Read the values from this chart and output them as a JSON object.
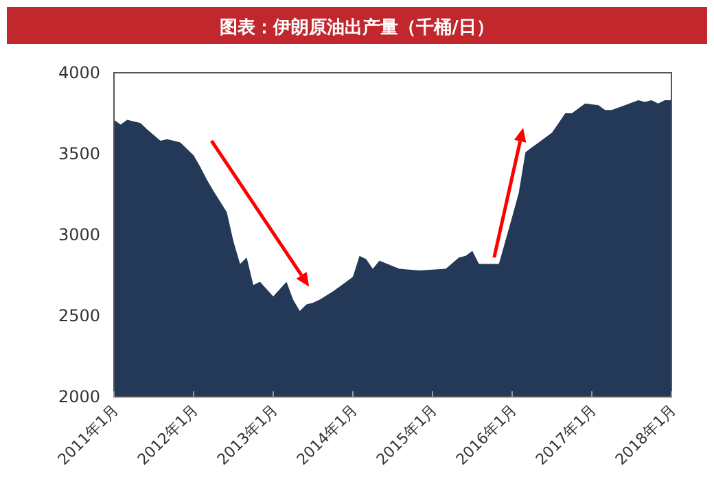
{
  "chart_data": {
    "type": "area",
    "title": "图表：伊朗原油出产量（千桶/日）",
    "x": [
      "2011-01",
      "2011-02",
      "2011-03",
      "2011-05",
      "2011-06",
      "2011-08",
      "2011-09",
      "2011-11",
      "2012-01",
      "2012-02",
      "2012-03",
      "2012-04",
      "2012-06",
      "2012-07",
      "2012-08",
      "2012-09",
      "2012-10",
      "2012-11",
      "2013-01",
      "2013-03",
      "2013-04",
      "2013-05",
      "2013-06",
      "2013-07",
      "2013-08",
      "2013-10",
      "2013-12",
      "2014-01",
      "2014-02",
      "2014-03",
      "2014-04",
      "2014-05",
      "2014-08",
      "2014-11",
      "2015-03",
      "2015-05",
      "2015-06",
      "2015-07",
      "2015-08",
      "2015-11",
      "2016-01",
      "2016-02",
      "2016-03",
      "2016-04",
      "2016-05",
      "2016-07",
      "2016-08",
      "2016-09",
      "2016-10",
      "2016-12",
      "2017-02",
      "2017-03",
      "2017-04",
      "2017-06",
      "2017-08",
      "2017-09",
      "2017-10",
      "2017-11",
      "2017-12",
      "2018-01"
    ],
    "values": [
      3710,
      3680,
      3710,
      3690,
      3650,
      3580,
      3590,
      3570,
      3490,
      3420,
      3340,
      3270,
      3140,
      2960,
      2820,
      2860,
      2690,
      2710,
      2620,
      2710,
      2600,
      2530,
      2570,
      2580,
      2600,
      2650,
      2710,
      2740,
      2870,
      2850,
      2790,
      2840,
      2790,
      2780,
      2790,
      2860,
      2870,
      2900,
      2820,
      2820,
      3110,
      3260,
      3510,
      3540,
      3570,
      3630,
      3690,
      3750,
      3750,
      3810,
      3800,
      3770,
      3770,
      3800,
      3830,
      3820,
      3830,
      3810,
      3830,
      3830
    ],
    "color": "#243858",
    "xlim": [
      "2011-01",
      "2018-01"
    ],
    "xticks": [
      {
        "value": "2011-01",
        "label": "2011年1月"
      },
      {
        "value": "2012-01",
        "label": "2012年1月"
      },
      {
        "value": "2013-01",
        "label": "2013年1月"
      },
      {
        "value": "2014-01",
        "label": "2014年1月"
      },
      {
        "value": "2015-01",
        "label": "2015年1月"
      },
      {
        "value": "2016-01",
        "label": "2016年1月"
      },
      {
        "value": "2017-01",
        "label": "2017年1月"
      },
      {
        "value": "2018-01",
        "label": "2018年1月"
      }
    ],
    "ylim": [
      2000,
      4000
    ],
    "yticks": [
      2000,
      2500,
      3000,
      3500,
      4000
    ]
  }
}
